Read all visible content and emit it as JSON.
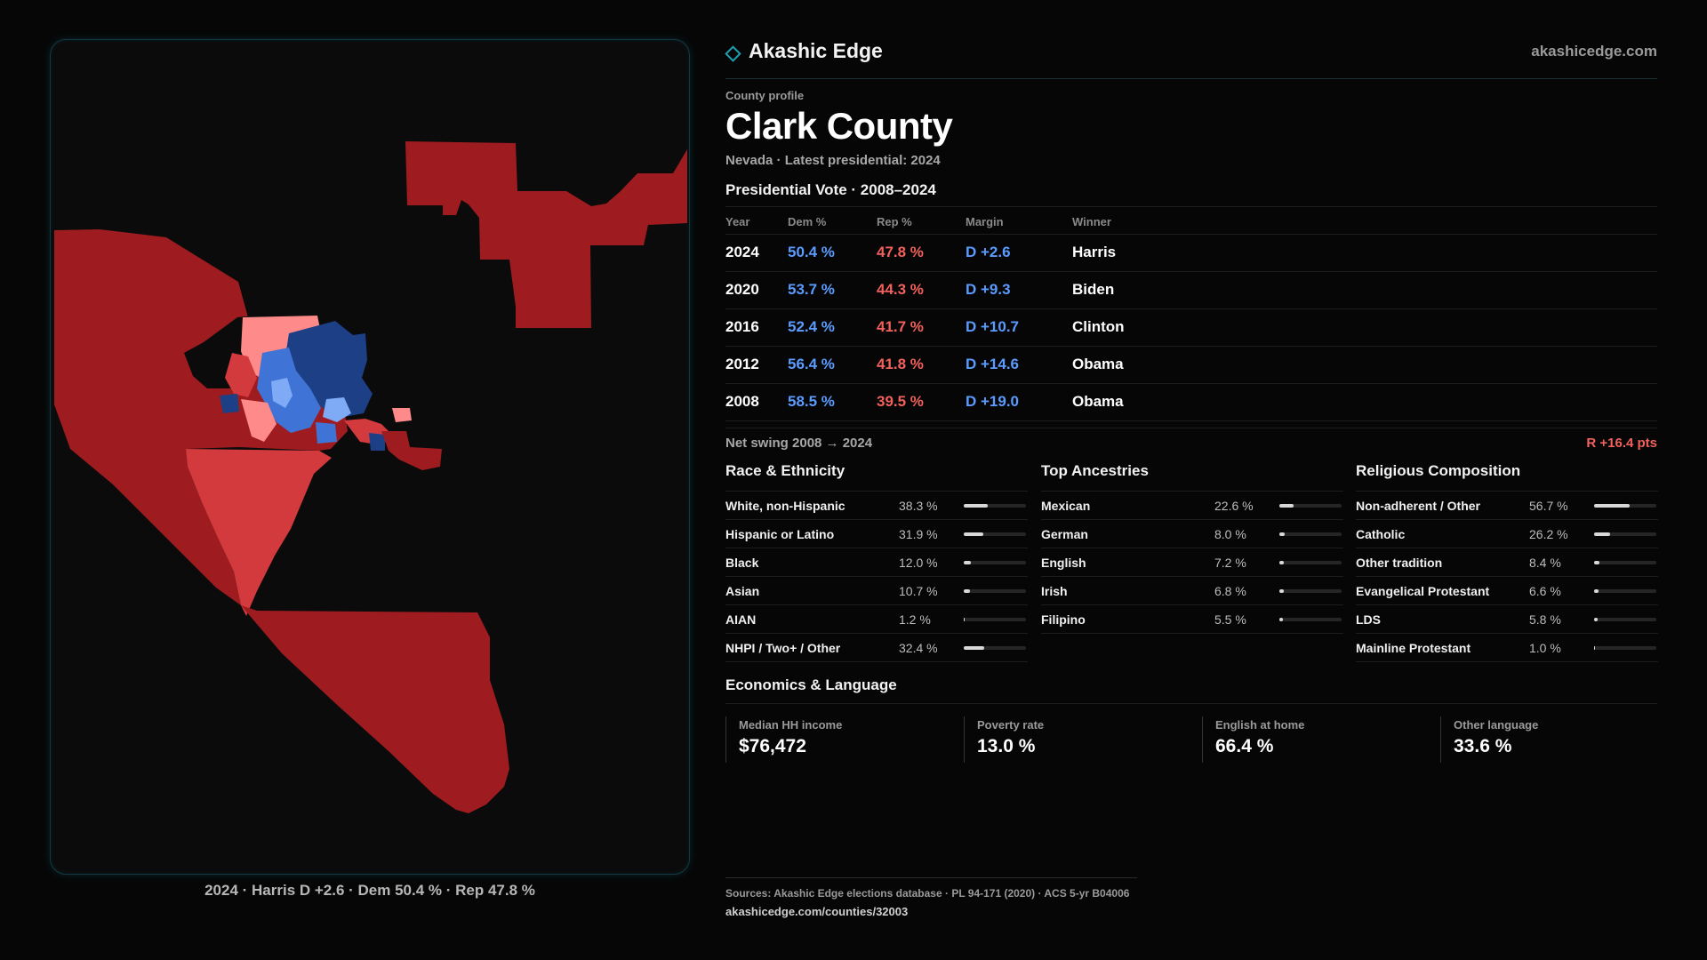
{
  "map": {
    "caption": "2024 · Harris D +2.6 · Dem 50.4 % · Rep 47.8 %",
    "colors": {
      "rep_dark": "#9e1c1f",
      "rep_mid": "#d33a3d",
      "rep_light": "#ff8a8a",
      "dem_dark": "#1c3f85",
      "dem_mid": "#3f74d6",
      "dem_light": "#7faaf5"
    }
  },
  "brand": {
    "name": "Akashic Edge",
    "url": "akashicedge.com"
  },
  "profile": {
    "kicker": "County profile",
    "title": "Clark County",
    "subtitle": "Nevada · Latest presidential: 2024"
  },
  "vote": {
    "heading": "Presidential Vote · 2008–2024",
    "columns": [
      "Year",
      "Dem %",
      "Rep %",
      "Margin",
      "Winner"
    ],
    "rows": [
      {
        "year": "2024",
        "dem": "50.4 %",
        "rep": "47.8 %",
        "margin": "D +2.6",
        "winner": "Harris"
      },
      {
        "year": "2020",
        "dem": "53.7 %",
        "rep": "44.3 %",
        "margin": "D +9.3",
        "winner": "Biden"
      },
      {
        "year": "2016",
        "dem": "52.4 %",
        "rep": "41.7 %",
        "margin": "D +10.7",
        "winner": "Clinton"
      },
      {
        "year": "2012",
        "dem": "56.4 %",
        "rep": "41.8 %",
        "margin": "D +14.6",
        "winner": "Obama"
      },
      {
        "year": "2008",
        "dem": "58.5 %",
        "rep": "39.5 %",
        "margin": "D +19.0",
        "winner": "Obama"
      }
    ],
    "swing_label": "Net swing 2008 → 2024",
    "swing_value": "R +16.4 pts"
  },
  "race": {
    "heading": "Race & Ethnicity",
    "items": [
      {
        "label": "White, non-Hispanic",
        "pct": "38.3 %",
        "value": 38.3
      },
      {
        "label": "Hispanic or Latino",
        "pct": "31.9 %",
        "value": 31.9
      },
      {
        "label": "Black",
        "pct": "12.0 %",
        "value": 12.0
      },
      {
        "label": "Asian",
        "pct": "10.7 %",
        "value": 10.7
      },
      {
        "label": "AIAN",
        "pct": "1.2 %",
        "value": 1.2
      },
      {
        "label": "NHPI / Two+ / Other",
        "pct": "32.4 %",
        "value": 32.4
      }
    ]
  },
  "ancestry": {
    "heading": "Top Ancestries",
    "items": [
      {
        "label": "Mexican",
        "pct": "22.6 %",
        "value": 22.6
      },
      {
        "label": "German",
        "pct": "8.0 %",
        "value": 8.0
      },
      {
        "label": "English",
        "pct": "7.2 %",
        "value": 7.2
      },
      {
        "label": "Irish",
        "pct": "6.8 %",
        "value": 6.8
      },
      {
        "label": "Filipino",
        "pct": "5.5 %",
        "value": 5.5
      }
    ]
  },
  "religion": {
    "heading": "Religious Composition",
    "items": [
      {
        "label": "Non-adherent / Other",
        "pct": "56.7 %",
        "value": 56.7
      },
      {
        "label": "Catholic",
        "pct": "26.2 %",
        "value": 26.2
      },
      {
        "label": "Other tradition",
        "pct": "8.4 %",
        "value": 8.4
      },
      {
        "label": "Evangelical Protestant",
        "pct": "6.6 %",
        "value": 6.6
      },
      {
        "label": "LDS",
        "pct": "5.8 %",
        "value": 5.8
      },
      {
        "label": "Mainline Protestant",
        "pct": "1.0 %",
        "value": 1.0
      }
    ]
  },
  "economics": {
    "heading": "Economics & Language",
    "cards": [
      {
        "label": "Median HH income",
        "value": "$76,472"
      },
      {
        "label": "Poverty rate",
        "value": "13.0 %"
      },
      {
        "label": "English at home",
        "value": "66.4 %"
      },
      {
        "label": "Other language",
        "value": "33.6 %"
      }
    ]
  },
  "sources": {
    "line1": "Sources: Akashic Edge elections database · PL 94-171 (2020) · ACS 5-yr B04006",
    "line2": "akashicedge.com/counties/32003"
  }
}
